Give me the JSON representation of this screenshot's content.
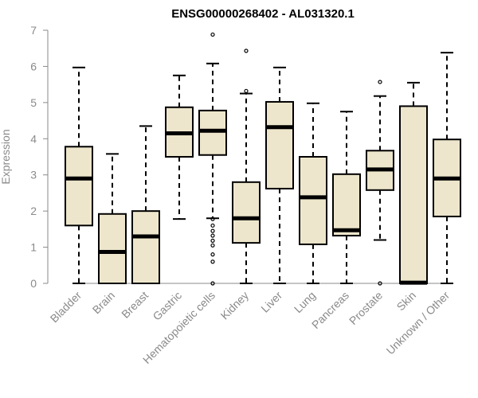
{
  "chart_data": {
    "type": "boxplot",
    "title": "ENSG00000268402 - AL031320.1",
    "xlabel": "",
    "ylabel": "Expression",
    "ylim": [
      0,
      7
    ],
    "yticks": [
      0,
      1,
      2,
      3,
      4,
      5,
      6,
      7
    ],
    "colors": {
      "box_fill": "#ede6cc",
      "box_stroke": "#000000",
      "axis": "#8a8a8a",
      "median": "#000000"
    },
    "categories": [
      "Bladder",
      "Brain",
      "Breast",
      "Gastric",
      "Hematopoietic cells",
      "Kidney",
      "Liver",
      "Lung",
      "Pancreas",
      "Prostate",
      "Skin",
      "Unknown / Other"
    ],
    "boxes": [
      {
        "name": "Bladder",
        "whisker_low": 0,
        "q1": 1.6,
        "median": 2.9,
        "q3": 3.78,
        "whisker_high": 5.97,
        "outliers": []
      },
      {
        "name": "Brain",
        "whisker_low": 0,
        "q1": 0,
        "median": 0.87,
        "q3": 1.92,
        "whisker_high": 3.58,
        "outliers": []
      },
      {
        "name": "Breast",
        "whisker_low": 0,
        "q1": 0,
        "median": 1.3,
        "q3": 2.0,
        "whisker_high": 4.35,
        "outliers": []
      },
      {
        "name": "Gastric",
        "whisker_low": 1.78,
        "q1": 3.5,
        "median": 4.15,
        "q3": 4.87,
        "whisker_high": 5.75,
        "outliers": []
      },
      {
        "name": "Hematopoietic cells",
        "whisker_low": 1.8,
        "q1": 3.55,
        "median": 4.22,
        "q3": 4.78,
        "whisker_high": 6.08,
        "outliers": [
          6.88,
          1.78,
          1.6,
          1.45,
          1.32,
          1.18,
          1.05,
          0.8,
          0.6,
          0
        ]
      },
      {
        "name": "Kidney",
        "whisker_low": 0,
        "q1": 1.12,
        "median": 1.8,
        "q3": 2.8,
        "whisker_high": 5.25,
        "outliers": [
          6.43,
          5.32
        ]
      },
      {
        "name": "Liver",
        "whisker_low": 0,
        "q1": 2.62,
        "median": 4.32,
        "q3": 5.02,
        "whisker_high": 5.97,
        "outliers": []
      },
      {
        "name": "Lung",
        "whisker_low": 0,
        "q1": 1.08,
        "median": 2.38,
        "q3": 3.5,
        "whisker_high": 4.98,
        "outliers": []
      },
      {
        "name": "Pancreas",
        "whisker_low": 0,
        "q1": 1.32,
        "median": 1.47,
        "q3": 3.02,
        "whisker_high": 4.75,
        "outliers": []
      },
      {
        "name": "Prostate",
        "whisker_low": 1.2,
        "q1": 2.58,
        "median": 3.15,
        "q3": 3.67,
        "whisker_high": 5.18,
        "outliers": [
          5.57,
          0
        ]
      },
      {
        "name": "Skin",
        "whisker_low": 0,
        "q1": 0,
        "median": 0.02,
        "q3": 4.9,
        "whisker_high": 5.55,
        "outliers": []
      },
      {
        "name": "Unknown / Other",
        "whisker_low": 0,
        "q1": 1.85,
        "median": 2.9,
        "q3": 3.98,
        "whisker_high": 6.38,
        "outliers": []
      }
    ]
  }
}
